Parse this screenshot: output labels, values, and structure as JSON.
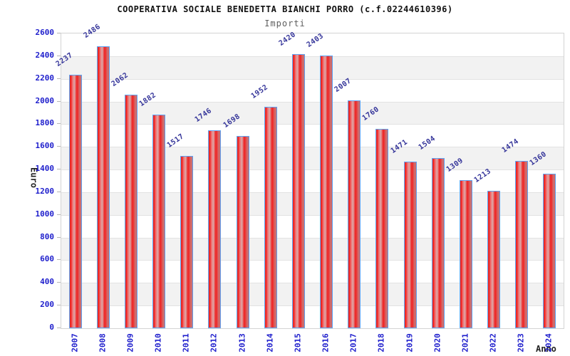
{
  "chart_data": {
    "type": "bar",
    "title": "COOPERATIVA SOCIALE BENEDETTA BIANCHI PORRO (c.f.02244610396)",
    "subtitle": "Importi",
    "xlabel": "Anno",
    "ylabel": "Euro",
    "categories": [
      "2007",
      "2008",
      "2009",
      "2010",
      "2011",
      "2012",
      "2013",
      "2014",
      "2015",
      "2016",
      "2017",
      "2018",
      "2019",
      "2020",
      "2021",
      "2022",
      "2023",
      "2024"
    ],
    "values": [
      2237,
      2486,
      2062,
      1882,
      1517,
      1746,
      1698,
      1952,
      2420,
      2403,
      2007,
      1760,
      1471,
      1504,
      1309,
      1213,
      1474,
      1360
    ],
    "ylim": [
      0,
      2600
    ],
    "ytick_step": 200,
    "grid": true,
    "legend": "none",
    "colors": {
      "bar_main": "#ee1c1c",
      "bar_highlight": "#dcaaaa",
      "bar_border": "#5da5f5",
      "band_alt": "#f2f2f2",
      "band_base": "#ffffff",
      "gridline": "#e2e2e2",
      "tick_label": "#1d1dcc",
      "value_label": "#333399",
      "title": "#111111",
      "subtitle": "#5f5f5f",
      "axis_title": "#222222"
    }
  }
}
